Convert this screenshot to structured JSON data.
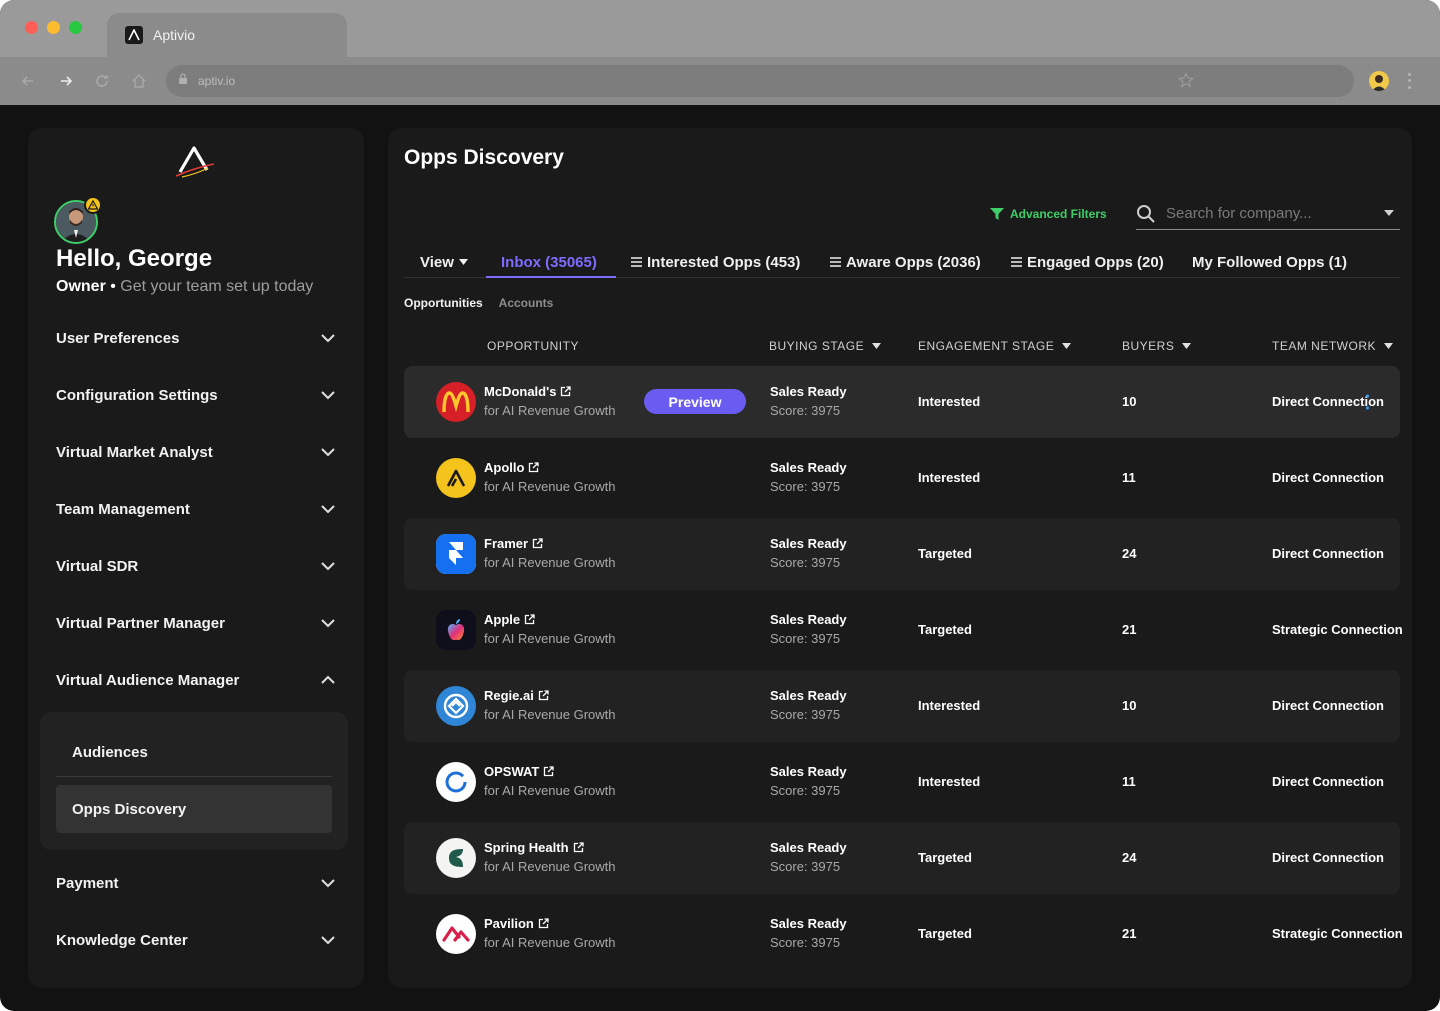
{
  "browser": {
    "tab_title": "Aptivio",
    "url": "aptiv.io"
  },
  "sidebar": {
    "greeting": "Hello, George",
    "role": "Owner",
    "tagline": "Get your team set up today",
    "items": [
      {
        "label": "User Preferences"
      },
      {
        "label": "Configuration Settings"
      },
      {
        "label": "Virtual Market Analyst"
      },
      {
        "label": "Team Management"
      },
      {
        "label": "Virtual SDR"
      },
      {
        "label": "Virtual Partner Manager"
      },
      {
        "label": "Virtual Audience Manager"
      },
      {
        "label": "Payment"
      },
      {
        "label": "Knowledge Center"
      }
    ],
    "submenu": [
      {
        "label": "Audiences"
      },
      {
        "label": "Opps Discovery"
      }
    ]
  },
  "main": {
    "title": "Opps Discovery",
    "advanced_filters": "Advanced Filters",
    "search_placeholder": "Search for company...",
    "tabs": [
      {
        "label": "View"
      },
      {
        "label": "Inbox (35065)"
      },
      {
        "label": "Interested Opps (453)"
      },
      {
        "label": "Aware Opps (2036)"
      },
      {
        "label": "Engaged Opps (20)"
      },
      {
        "label": "My Followed Opps (1)"
      }
    ],
    "subtabs": [
      "Opportunities",
      "Accounts"
    ],
    "columns": [
      "OPPORTUNITY",
      "BUYING STAGE",
      "ENGAGEMENT STAGE",
      "BUYERS",
      "TEAM NETWORK"
    ],
    "preview_label": "Preview",
    "rows": [
      {
        "name": "McDonald's",
        "sub": "for AI Revenue Growth",
        "stage": "Sales Ready",
        "score": "Score: 3975",
        "engagement": "Interested",
        "buyers": "10",
        "network": "Direct Connection"
      },
      {
        "name": "Apollo",
        "sub": "for AI Revenue Growth",
        "stage": "Sales Ready",
        "score": "Score: 3975",
        "engagement": "Interested",
        "buyers": "11",
        "network": "Direct Connection"
      },
      {
        "name": "Framer",
        "sub": "for AI Revenue Growth",
        "stage": "Sales Ready",
        "score": "Score: 3975",
        "engagement": "Targeted",
        "buyers": "24",
        "network": "Direct Connection"
      },
      {
        "name": "Apple",
        "sub": "for AI Revenue Growth",
        "stage": "Sales Ready",
        "score": "Score: 3975",
        "engagement": "Targeted",
        "buyers": "21",
        "network": "Strategic Connection"
      },
      {
        "name": "Regie.ai",
        "sub": "for AI Revenue Growth",
        "stage": "Sales Ready",
        "score": "Score: 3975",
        "engagement": "Interested",
        "buyers": "10",
        "network": "Direct Connection"
      },
      {
        "name": "OPSWAT",
        "sub": "for AI Revenue Growth",
        "stage": "Sales Ready",
        "score": "Score: 3975",
        "engagement": "Interested",
        "buyers": "11",
        "network": "Direct Connection"
      },
      {
        "name": "Spring Health",
        "sub": "for AI Revenue Growth",
        "stage": "Sales Ready",
        "score": "Score: 3975",
        "engagement": "Targeted",
        "buyers": "24",
        "network": "Direct Connection"
      },
      {
        "name": "Pavilion",
        "sub": "for AI Revenue Growth",
        "stage": "Sales Ready",
        "score": "Score: 3975",
        "engagement": "Targeted",
        "buyers": "21",
        "network": "Strategic Connection"
      }
    ]
  },
  "colors": {
    "accent": "#6a5cf0",
    "accent_text": "#7c6cff",
    "filter_green": "#3ecf6a",
    "background": "#121212",
    "panel": "#1a1a1a"
  }
}
